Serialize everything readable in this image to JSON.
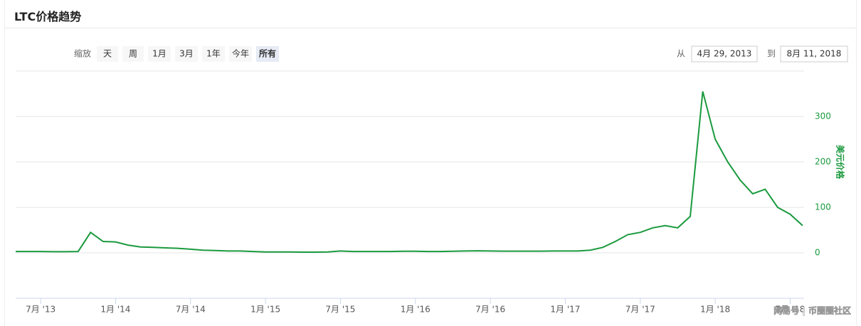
{
  "header": {
    "title": "LTC价格趋势"
  },
  "controls": {
    "zoom_label": "缩放",
    "zoom_buttons": [
      "天",
      "周",
      "1月",
      "3月",
      "1年",
      "今年",
      "所有"
    ],
    "from_label": "从",
    "from_value": "4月 29, 2013",
    "to_label": "到",
    "to_value": "8月 11, 2018"
  },
  "watermark": "网易号 | 币圈圈社区",
  "chart_data": {
    "type": "line",
    "y_axis_label": "美元价格",
    "color": "#1a9a3e",
    "grid": true,
    "x": [
      "2013-05",
      "2013-06",
      "2013-07",
      "2013-08",
      "2013-09",
      "2013-10",
      "2013-11",
      "2013-12",
      "2014-01",
      "2014-02",
      "2014-03",
      "2014-04",
      "2014-05",
      "2014-06",
      "2014-07",
      "2014-08",
      "2014-09",
      "2014-10",
      "2014-11",
      "2014-12",
      "2015-01",
      "2015-02",
      "2015-03",
      "2015-04",
      "2015-05",
      "2015-06",
      "2015-07",
      "2015-08",
      "2015-09",
      "2015-10",
      "2015-11",
      "2015-12",
      "2016-01",
      "2016-02",
      "2016-03",
      "2016-04",
      "2016-05",
      "2016-06",
      "2016-07",
      "2016-08",
      "2016-09",
      "2016-10",
      "2016-11",
      "2016-12",
      "2017-01",
      "2017-02",
      "2017-03",
      "2017-04",
      "2017-05",
      "2017-06",
      "2017-07",
      "2017-08",
      "2017-09",
      "2017-10",
      "2017-11",
      "2017-12",
      "2018-01",
      "2018-02",
      "2018-03",
      "2018-04",
      "2018-05",
      "2018-06",
      "2018-07",
      "2018-08"
    ],
    "values": [
      3,
      3,
      3,
      2.5,
      2.5,
      3,
      45,
      25,
      24,
      17,
      13,
      12,
      11,
      10,
      8,
      6,
      5,
      4,
      4,
      3,
      2,
      2,
      2,
      1.5,
      1.5,
      2,
      4,
      3,
      3,
      3,
      3,
      3.5,
      3.5,
      3,
      3,
      3.5,
      4,
      4.5,
      4,
      3.8,
      3.8,
      3.8,
      3.8,
      4,
      4,
      4,
      6,
      12,
      25,
      40,
      45,
      55,
      60,
      55,
      80,
      355,
      250,
      200,
      160,
      130,
      140,
      100,
      85,
      60
    ],
    "xlim": [
      "2013-05",
      "2018-08"
    ],
    "xticks": [
      {
        "value": "2013-07",
        "label": "7月 '13"
      },
      {
        "value": "2014-01",
        "label": "1月 '14"
      },
      {
        "value": "2014-07",
        "label": "7月 '14"
      },
      {
        "value": "2015-01",
        "label": "1月 '15"
      },
      {
        "value": "2015-07",
        "label": "7月 '15"
      },
      {
        "value": "2016-01",
        "label": "1月 '16"
      },
      {
        "value": "2016-07",
        "label": "7月 '16"
      },
      {
        "value": "2017-01",
        "label": "1月 '17"
      },
      {
        "value": "2017-07",
        "label": "7月 '17"
      },
      {
        "value": "2018-01",
        "label": "1月 '18"
      },
      {
        "value": "2018-07",
        "label": "7月 '18"
      }
    ],
    "ylim": [
      -100,
      400
    ],
    "yticks": [
      0,
      100,
      200,
      300
    ]
  }
}
